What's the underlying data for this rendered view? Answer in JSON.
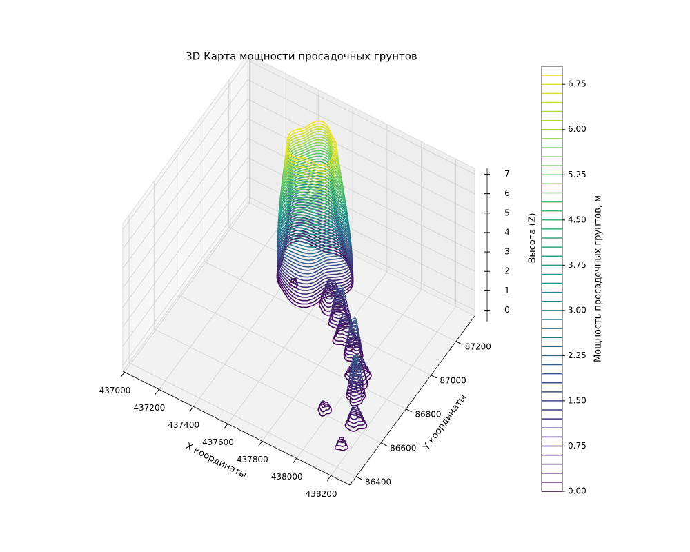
{
  "chart_data": {
    "type": "contour3d",
    "title": "3D Карта мощности просадочных грунтов",
    "xlabel": "X координаты",
    "ylabel": "Y координаты",
    "zlabel": "Высота (Z)",
    "colorbar_label": "Мощность просадочных грунтов, м",
    "colormap": "viridis",
    "xlim": [
      436990,
      438310
    ],
    "ylim": [
      86350,
      87350
    ],
    "zlim": [
      -0.3,
      7.3
    ],
    "xticks": [
      437000,
      437200,
      437400,
      437600,
      437800,
      438000,
      438200
    ],
    "yticks": [
      86400,
      86600,
      86800,
      87000,
      87200
    ],
    "zticks": [
      0,
      1,
      2,
      3,
      4,
      5,
      6,
      7
    ],
    "colorbar_lim": [
      0,
      7.05
    ],
    "colorbar_ticks": [
      {
        "value": 0,
        "label": "0.00"
      },
      {
        "value": 0.75,
        "label": "0.75"
      },
      {
        "value": 1.5,
        "label": "1.50"
      },
      {
        "value": 2.25,
        "label": "2.25"
      },
      {
        "value": 3,
        "label": "3.00"
      },
      {
        "value": 3.75,
        "label": "3.75"
      },
      {
        "value": 4.5,
        "label": "4.50"
      },
      {
        "value": 5.25,
        "label": "5.25"
      },
      {
        "value": 6,
        "label": "6.00"
      },
      {
        "value": 6.75,
        "label": "6.75"
      }
    ],
    "levels": [
      0,
      0.15,
      0.3,
      0.45,
      0.6,
      0.75,
      0.9,
      1.05,
      1.2,
      1.35,
      1.5,
      1.65,
      1.8,
      1.95,
      2.1,
      2.25,
      2.4,
      2.55,
      2.7,
      2.85,
      3,
      3.15,
      3.3,
      3.45,
      3.6,
      3.75,
      3.9,
      4.05,
      4.2,
      4.35,
      4.5,
      4.65,
      4.8,
      4.95,
      5.1,
      5.25,
      5.4,
      5.55,
      5.7,
      5.85,
      6,
      6.15,
      6.3,
      6.45,
      6.6,
      6.75,
      6.9
    ],
    "grid": true
  }
}
